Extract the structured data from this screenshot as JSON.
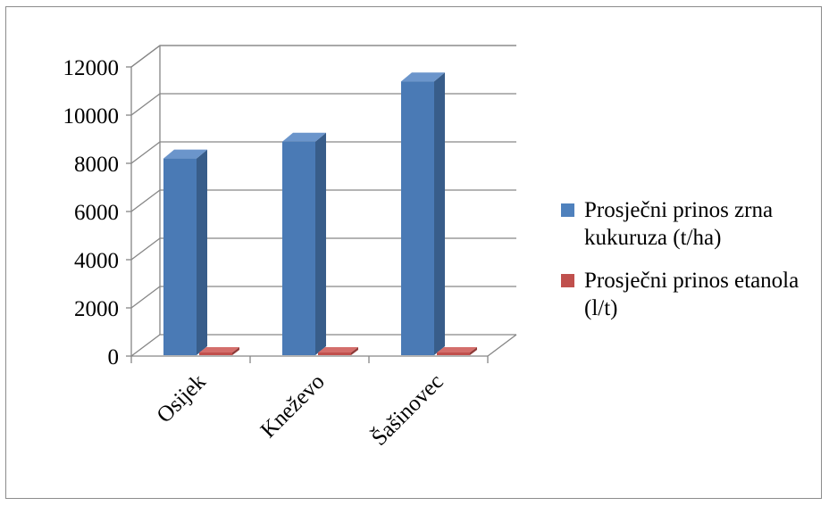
{
  "chart_data": {
    "type": "bar",
    "categories": [
      "Osijek",
      "Kneževo",
      "Šašinovec"
    ],
    "series": [
      {
        "name": "Prosječni prinos zrna kukuruza (t/ha)",
        "values": [
          8200,
          8900,
          11400
        ],
        "color": "#4f81bd"
      },
      {
        "name": "Prosječni prinos etanola (l/t)",
        "values": [
          400,
          400,
          400
        ],
        "color": "#c0504d"
      }
    ],
    "yticks": [
      "0",
      "2000",
      "4000",
      "6000",
      "8000",
      "10000",
      "12000"
    ],
    "ylim": [
      0,
      12000
    ],
    "grid": true,
    "legend_position": "right",
    "title": "",
    "xlabel": "",
    "ylabel": ""
  }
}
